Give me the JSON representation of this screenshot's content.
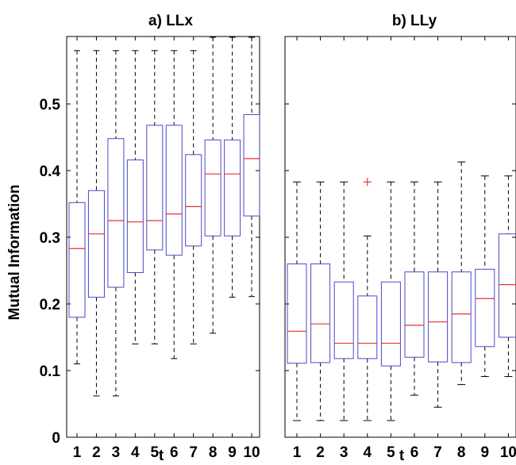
{
  "chart_data": [
    {
      "type": "box",
      "title": "a) LLx",
      "xlabel": "t",
      "ylabel": "Mutual Information",
      "categories": [
        "1",
        "2",
        "3",
        "4",
        "5",
        "6",
        "7",
        "8",
        "9",
        "10"
      ],
      "ylim": [
        0,
        0.6
      ],
      "yticks": [
        "0",
        "0.1",
        "0.2",
        "0.3",
        "0.4",
        "0.5"
      ],
      "boxes": [
        {
          "min": 0.11,
          "q1": 0.18,
          "median": 0.283,
          "q3": 0.352,
          "max": 0.58
        },
        {
          "min": 0.062,
          "q1": 0.21,
          "median": 0.305,
          "q3": 0.37,
          "max": 0.58
        },
        {
          "min": 0.062,
          "q1": 0.225,
          "median": 0.325,
          "q3": 0.448,
          "max": 0.58
        },
        {
          "min": 0.14,
          "q1": 0.247,
          "median": 0.323,
          "q3": 0.416,
          "max": 0.58
        },
        {
          "min": 0.14,
          "q1": 0.281,
          "median": 0.325,
          "q3": 0.468,
          "max": 0.58
        },
        {
          "min": 0.118,
          "q1": 0.273,
          "median": 0.335,
          "q3": 0.468,
          "max": 0.58
        },
        {
          "min": 0.14,
          "q1": 0.287,
          "median": 0.346,
          "q3": 0.424,
          "max": 0.58
        },
        {
          "min": 0.156,
          "q1": 0.302,
          "median": 0.395,
          "q3": 0.446,
          "max": 0.6
        },
        {
          "min": 0.21,
          "q1": 0.302,
          "median": 0.395,
          "q3": 0.446,
          "max": 0.6
        },
        {
          "min": 0.211,
          "q1": 0.332,
          "median": 0.418,
          "q3": 0.484,
          "max": 0.6
        }
      ],
      "outliers": []
    },
    {
      "type": "box",
      "title": "b) LLy",
      "xlabel": "t",
      "categories": [
        "1",
        "2",
        "3",
        "4",
        "5",
        "6",
        "7",
        "8",
        "9",
        "10"
      ],
      "ylim": [
        0,
        0.6
      ],
      "boxes": [
        {
          "min": 0.025,
          "q1": 0.111,
          "median": 0.159,
          "q3": 0.26,
          "max": 0.383
        },
        {
          "min": 0.025,
          "q1": 0.112,
          "median": 0.17,
          "q3": 0.26,
          "max": 0.383
        },
        {
          "min": 0.025,
          "q1": 0.118,
          "median": 0.141,
          "q3": 0.233,
          "max": 0.383
        },
        {
          "min": 0.025,
          "q1": 0.118,
          "median": 0.141,
          "q3": 0.212,
          "max": 0.302
        },
        {
          "min": 0.025,
          "q1": 0.107,
          "median": 0.141,
          "q3": 0.233,
          "max": 0.383
        },
        {
          "min": 0.063,
          "q1": 0.12,
          "median": 0.168,
          "q3": 0.248,
          "max": 0.383
        },
        {
          "min": 0.045,
          "q1": 0.113,
          "median": 0.173,
          "q3": 0.248,
          "max": 0.383
        },
        {
          "min": 0.079,
          "q1": 0.112,
          "median": 0.185,
          "q3": 0.248,
          "max": 0.413
        },
        {
          "min": 0.091,
          "q1": 0.136,
          "median": 0.208,
          "q3": 0.252,
          "max": 0.392
        },
        {
          "min": 0.091,
          "q1": 0.15,
          "median": 0.229,
          "q3": 0.305,
          "max": 0.392
        }
      ],
      "outliers": [
        {
          "category": "4",
          "value": 0.383
        }
      ]
    }
  ],
  "colors": {
    "box": "#4a4ac6",
    "median": "#e8312f",
    "whisker": "#000000",
    "outlier": "#e8312f"
  }
}
